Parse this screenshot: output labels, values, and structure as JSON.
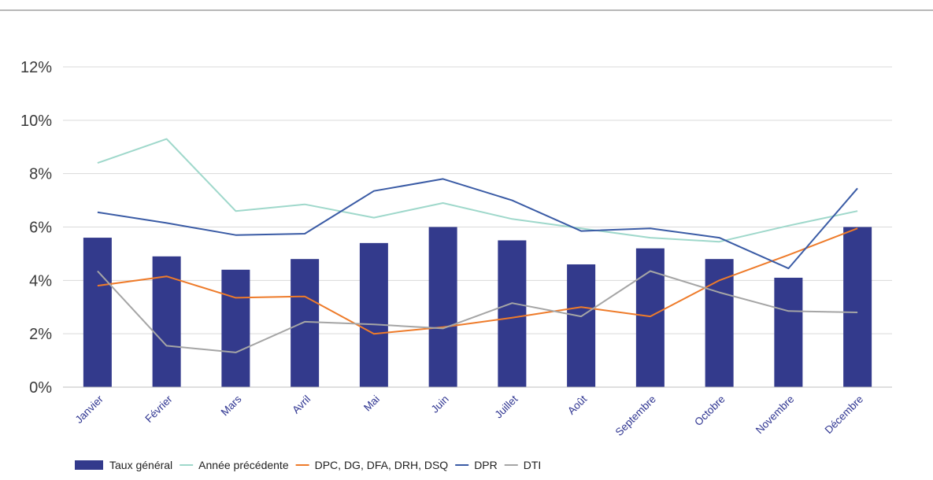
{
  "chart_data": {
    "type": "bar",
    "title": "",
    "xlabel": "",
    "ylabel": "",
    "categories": [
      "Janvier",
      "Février",
      "Mars",
      "Avril",
      "Mai",
      "Juin",
      "Juillet",
      "Août",
      "Septembre",
      "Octobre",
      "Novembre",
      "Décembre"
    ],
    "ylim": [
      0,
      12
    ],
    "yticks": [
      0,
      2,
      4,
      6,
      8,
      10,
      12
    ],
    "ytick_labels": [
      "0%",
      "2%",
      "4%",
      "6%",
      "8%",
      "10%",
      "12%"
    ],
    "grid": "horizontal",
    "legend_position": "bottom-left",
    "series": [
      {
        "name": "Taux général",
        "kind": "bar",
        "color": "#333a8c",
        "values": [
          5.6,
          4.9,
          4.4,
          4.8,
          5.4,
          6.0,
          5.5,
          4.6,
          5.2,
          4.8,
          4.1,
          6.0
        ]
      },
      {
        "name": "Année précédente",
        "kind": "line",
        "color": "#9fd8cb",
        "values": [
          8.4,
          9.3,
          6.6,
          6.85,
          6.35,
          6.9,
          6.3,
          5.95,
          5.6,
          5.45,
          6.05,
          6.6
        ]
      },
      {
        "name": "DPC, DG, DFA, DRH, DSQ",
        "kind": "line",
        "color": "#ee7b2a",
        "values": [
          3.8,
          4.15,
          3.35,
          3.4,
          2.0,
          2.25,
          2.6,
          3.0,
          2.65,
          4.0,
          4.95,
          5.95
        ]
      },
      {
        "name": "DPR",
        "kind": "line",
        "color": "#3a5ba5",
        "values": [
          6.55,
          6.15,
          5.7,
          5.75,
          7.35,
          7.8,
          7.0,
          5.85,
          5.95,
          5.6,
          4.45,
          7.45
        ]
      },
      {
        "name": "DTI",
        "kind": "line",
        "color": "#a5a5a5",
        "values": [
          4.35,
          1.55,
          1.3,
          2.45,
          2.35,
          2.2,
          3.15,
          2.65,
          4.35,
          3.55,
          2.85,
          2.8
        ]
      }
    ]
  }
}
